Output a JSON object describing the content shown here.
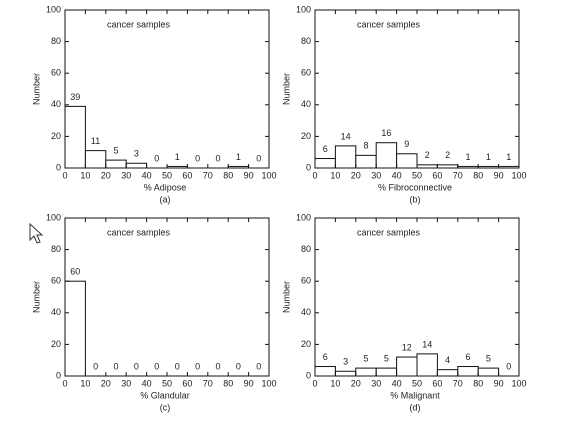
{
  "chart_data": [
    {
      "type": "histogram",
      "annotation": "cancer samples",
      "ylabel": "Number",
      "xlabel": "% Adipose",
      "caption": "(a)",
      "bins": [
        0,
        10,
        20,
        30,
        40,
        50,
        60,
        70,
        80,
        90,
        100
      ],
      "values": [
        39,
        11,
        5,
        3,
        0,
        1,
        0,
        0,
        1,
        0
      ],
      "xlim": [
        0,
        100
      ],
      "ylim": [
        0,
        100
      ],
      "xticks": [
        0,
        10,
        20,
        30,
        40,
        50,
        60,
        70,
        80,
        90,
        100
      ],
      "yticks": [
        0,
        20,
        40,
        60,
        80,
        100
      ],
      "color": "#ffffff"
    },
    {
      "type": "histogram",
      "annotation": "cancer samples",
      "ylabel": "Number",
      "xlabel": "% Fibroconnective",
      "caption": "(b)",
      "bins": [
        0,
        10,
        20,
        30,
        40,
        50,
        60,
        70,
        80,
        90,
        100
      ],
      "values": [
        6,
        14,
        8,
        16,
        9,
        2,
        2,
        1,
        1,
        1
      ],
      "xlim": [
        0,
        100
      ],
      "ylim": [
        0,
        100
      ],
      "xticks": [
        0,
        10,
        20,
        30,
        40,
        50,
        60,
        70,
        80,
        90,
        100
      ],
      "yticks": [
        0,
        20,
        40,
        60,
        80,
        100
      ],
      "color": "#ffffff"
    },
    {
      "type": "histogram",
      "annotation": "cancer samples",
      "ylabel": "Number",
      "xlabel": "% Glandular",
      "caption": "(c)",
      "bins": [
        0,
        10,
        20,
        30,
        40,
        50,
        60,
        70,
        80,
        90,
        100
      ],
      "values": [
        60,
        0,
        0,
        0,
        0,
        0,
        0,
        0,
        0,
        0
      ],
      "xlim": [
        0,
        100
      ],
      "ylim": [
        0,
        100
      ],
      "xticks": [
        0,
        10,
        20,
        30,
        40,
        50,
        60,
        70,
        80,
        90,
        100
      ],
      "yticks": [
        0,
        20,
        40,
        60,
        80,
        100
      ],
      "color": "#ffffff"
    },
    {
      "type": "histogram",
      "annotation": "cancer samples",
      "ylabel": "Number",
      "xlabel": "% Malignant",
      "caption": "(d)",
      "bins": [
        0,
        10,
        20,
        30,
        40,
        50,
        60,
        70,
        80,
        90,
        100
      ],
      "values": [
        6,
        3,
        5,
        5,
        12,
        14,
        4,
        6,
        5,
        0
      ],
      "xlim": [
        0,
        100
      ],
      "ylim": [
        0,
        100
      ],
      "xticks": [
        0,
        10,
        20,
        30,
        40,
        50,
        60,
        70,
        80,
        90,
        100
      ],
      "yticks": [
        0,
        20,
        40,
        60,
        80,
        100
      ],
      "color": "#ffffff"
    }
  ]
}
